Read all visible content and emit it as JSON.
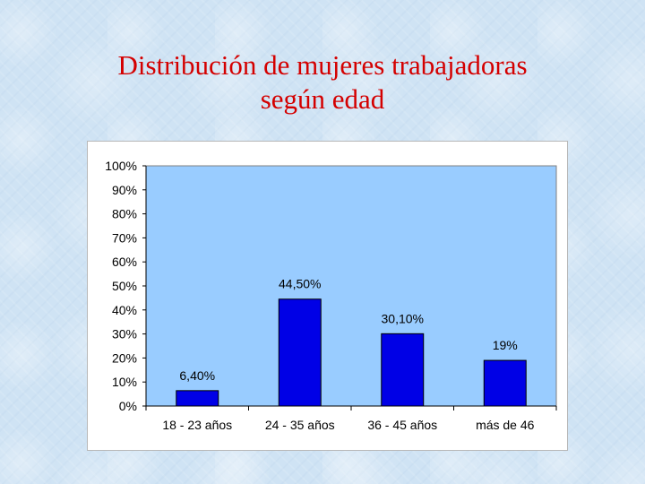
{
  "slide": {
    "title_line1": "Distribución de mujeres trabajadoras",
    "title_line2": "según  edad",
    "title_color": "#d40000",
    "background_color": "#cfe3f4"
  },
  "chart_data": {
    "type": "bar",
    "title": "",
    "xlabel": "",
    "ylabel": "",
    "categories": [
      "18 - 23 años",
      "24 - 35 años",
      "36 - 45 años",
      "más de 46"
    ],
    "values": [
      6.4,
      44.5,
      30.1,
      19
    ],
    "value_labels": [
      "6,40%",
      "44,50%",
      "30,10%",
      "19%"
    ],
    "ylim": [
      0,
      100
    ],
    "yticks": [
      0,
      10,
      20,
      30,
      40,
      50,
      60,
      70,
      80,
      90,
      100
    ],
    "ytick_labels": [
      "0%",
      "10%",
      "20%",
      "30%",
      "40%",
      "50%",
      "60%",
      "70%",
      "80%",
      "90%",
      "100%"
    ],
    "grid": false,
    "legend": "none",
    "bar_color": "#0000e6",
    "plot_background": "#99ccff"
  }
}
